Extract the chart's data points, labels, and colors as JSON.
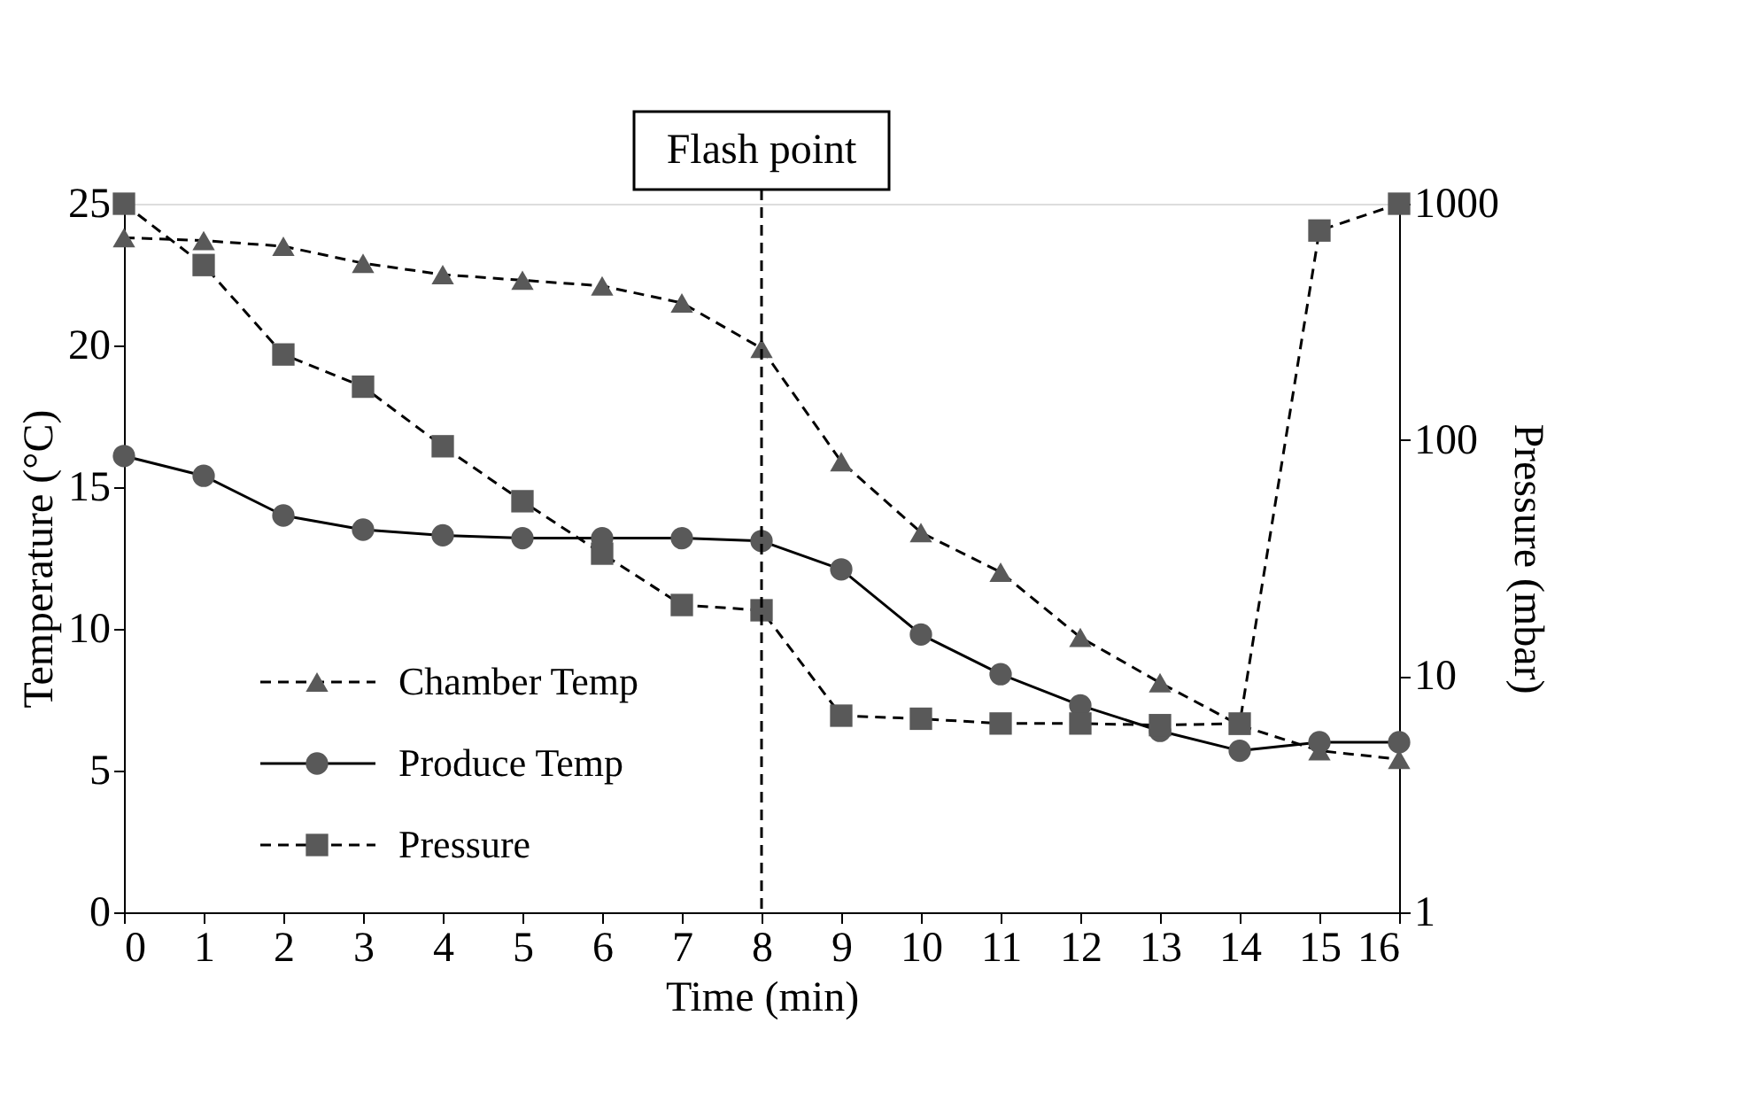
{
  "chart_data": {
    "type": "line",
    "xlabel": "Time (min)",
    "ylabel": "Temperature (°C)",
    "y2label": "Pressure (mbar)",
    "x": [
      0,
      1,
      2,
      3,
      4,
      5,
      6,
      7,
      8,
      9,
      10,
      11,
      12,
      13,
      14,
      15,
      16
    ],
    "xlim": [
      0,
      16
    ],
    "xticks": [
      0,
      1,
      2,
      3,
      4,
      5,
      6,
      7,
      8,
      9,
      10,
      11,
      12,
      13,
      14,
      15,
      16
    ],
    "ylim": [
      0,
      25
    ],
    "yticks": [
      0,
      5,
      10,
      15,
      20,
      25
    ],
    "y2lim": [
      1,
      1000
    ],
    "y2ticks": [
      1,
      10,
      100,
      1000
    ],
    "log": "y2",
    "grid": false,
    "legend": "left",
    "series": [
      {
        "name": "Chamber Temp",
        "color": "#595959",
        "marker": "triangle",
        "line_style": "dashed",
        "values": [
          23.8,
          23.7,
          23.5,
          22.9,
          22.5,
          22.3,
          22.1,
          21.5,
          19.9,
          15.9,
          13.4,
          12.0,
          9.7,
          8.1,
          6.6,
          5.7,
          5.4
        ]
      },
      {
        "name": "Produce Temp",
        "color": "#595959",
        "marker": "circle",
        "line_style": "solid",
        "values": [
          16.1,
          15.4,
          14.0,
          13.5,
          13.3,
          13.2,
          13.2,
          13.2,
          13.1,
          12.1,
          9.8,
          8.4,
          7.3,
          6.4,
          5.7,
          6.0,
          6.0
        ]
      },
      {
        "name": "Pressure",
        "color": "#595959",
        "marker": "square",
        "line_style": "dashed",
        "axis": "y2",
        "values": [
          1000,
          550,
          230,
          168,
          94,
          55,
          33,
          20,
          19,
          6.8,
          6.6,
          6.3,
          6.3,
          6.2,
          6.3,
          770,
          1000
        ]
      }
    ],
    "ref_lines": [
      {
        "axis": "x",
        "value": 8,
        "label": "Flash point",
        "line_style": "dashed",
        "color": "#000000"
      }
    ]
  }
}
